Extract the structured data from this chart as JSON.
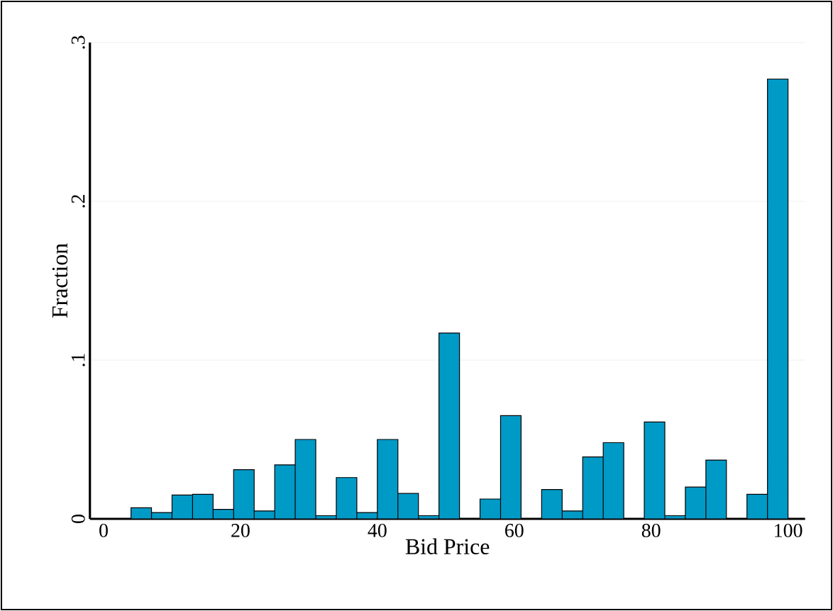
{
  "chart_data": {
    "type": "histogram",
    "xlabel": "Bid Price",
    "ylabel": "Fraction",
    "bins": [
      4,
      7,
      10,
      13,
      16,
      19,
      22,
      25,
      28,
      31,
      34,
      37,
      40,
      43,
      46,
      49,
      52,
      55,
      58,
      61,
      64,
      67,
      70,
      73,
      76,
      79,
      82,
      85,
      88,
      91,
      94,
      97,
      100
    ],
    "values": [
      0.007,
      0.004,
      0.015,
      0.0155,
      0.006,
      0.031,
      0.005,
      0.034,
      0.05,
      0.002,
      0.026,
      0.004,
      0.05,
      0.016,
      0.002,
      0.117,
      0,
      0.0125,
      0.065,
      0,
      0.0185,
      0.005,
      0.039,
      0.048,
      0,
      0.061,
      0.002,
      0.02,
      0.037,
      0,
      0.0155,
      0.277
    ],
    "color": "#009ac7",
    "xlim": [
      -2,
      102.5
    ],
    "ylim": [
      0,
      0.3
    ],
    "xticks": [
      0,
      20,
      40,
      60,
      80,
      100
    ],
    "yticks": [
      0,
      {
        "value": 0.1,
        "label": ".1"
      },
      {
        "value": 0.2,
        "label": ".2"
      },
      {
        "value": 0.3,
        "label": ".3"
      }
    ],
    "grid": "y"
  }
}
